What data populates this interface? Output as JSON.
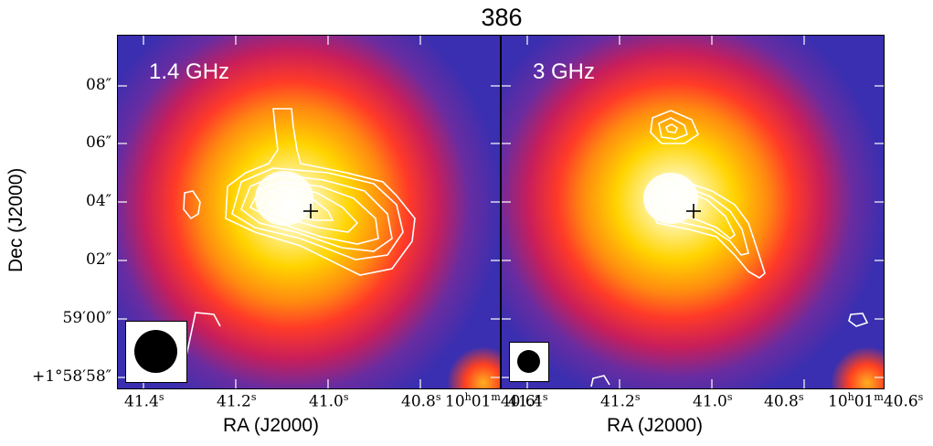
{
  "figure": {
    "title": "386",
    "panels": [
      {
        "label": "1.4 GHz"
      },
      {
        "label": "3 GHz"
      }
    ],
    "x_axis_title": "RA (J2000)",
    "y_axis_title": "Dec (J2000)",
    "dec_ticks": [
      "08″",
      "06″",
      "04″",
      "02″",
      "59′00″",
      "+1°58′58″"
    ],
    "ra_ticks": [
      "41.4",
      "41.2",
      "41.0",
      "40.8"
    ],
    "ra_tick_unit": "s",
    "ra_end_label": {
      "h": "10",
      "m": "01",
      "s": "40.6"
    },
    "colors": {
      "background_dark": "#3a2fb0",
      "mid": "#d0204a",
      "warm": "#ff4a20",
      "hot": "#ffd400",
      "peak": "#ffffff",
      "contour": "#ffffff"
    }
  }
}
